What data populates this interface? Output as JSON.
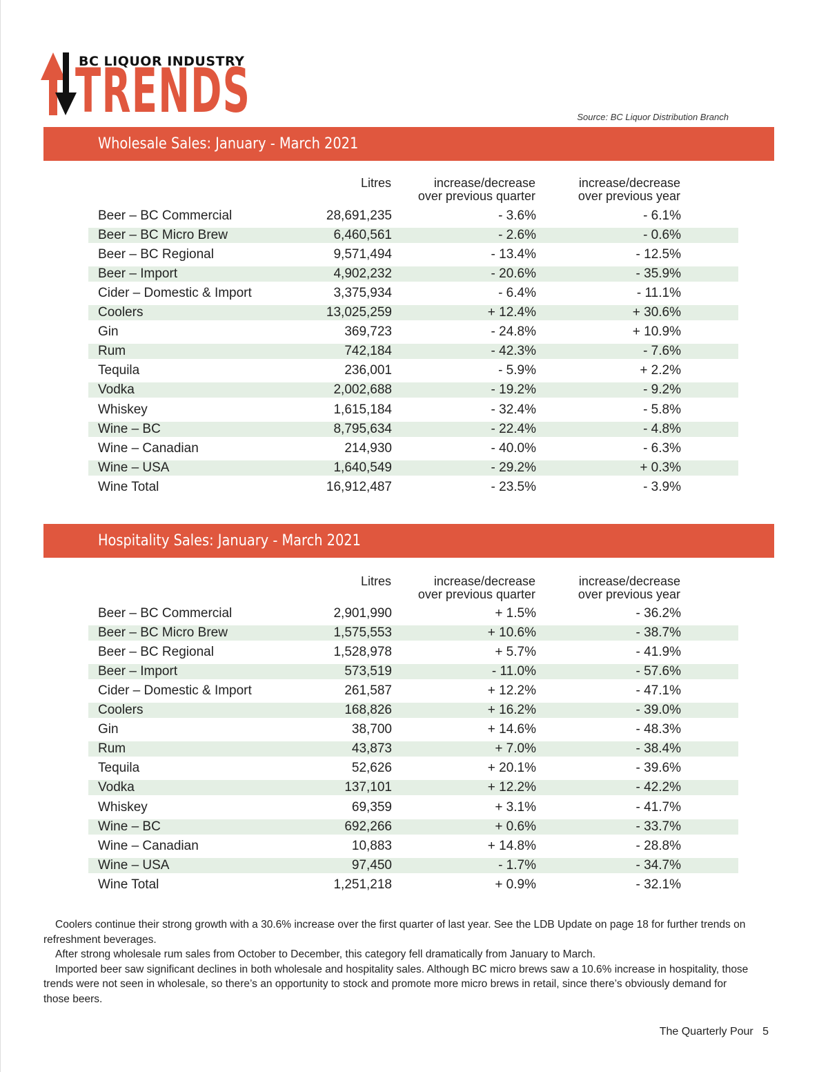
{
  "logo": {
    "small": "BC LIQUOR INDUSTRY",
    "big": "TRENDS",
    "colors": {
      "red": "#e0573e",
      "black": "#111111"
    }
  },
  "source": "Source:  BC Liquor Distribution Branch",
  "headers": {
    "litres": "Litres",
    "quarter1": "increase/decrease",
    "quarter2": "over previous quarter",
    "year1": "increase/decrease",
    "year2": "over previous year"
  },
  "wholesale": {
    "title": "Wholesale Sales:  January - March 2021",
    "rows": [
      [
        "Beer – BC Commercial",
        "28,691,235",
        "- 3.6%",
        "- 6.1%"
      ],
      [
        "Beer – BC Micro Brew",
        "6,460,561",
        "- 2.6%",
        "- 0.6%"
      ],
      [
        "Beer – BC Regional",
        "9,571,494",
        "- 13.4%",
        "- 12.5%"
      ],
      [
        "Beer – Import",
        "4,902,232",
        "- 20.6%",
        "- 35.9%"
      ],
      [
        "Cider – Domestic & Import",
        "3,375,934",
        "- 6.4%",
        "- 11.1%"
      ],
      [
        "Coolers",
        "13,025,259",
        "+ 12.4%",
        "+ 30.6%"
      ],
      [
        "Gin",
        "369,723",
        "- 24.8%",
        "+ 10.9%"
      ],
      [
        "Rum",
        "742,184",
        "- 42.3%",
        "- 7.6%"
      ],
      [
        "Tequila",
        "236,001",
        "- 5.9%",
        "+ 2.2%"
      ],
      [
        "Vodka",
        "2,002,688",
        "- 19.2%",
        "- 9.2%"
      ],
      [
        "Whiskey",
        "1,615,184",
        "- 32.4%",
        "- 5.8%"
      ],
      [
        "Wine – BC",
        "8,795,634",
        "- 22.4%",
        "- 4.8%"
      ],
      [
        "Wine – Canadian",
        "214,930",
        "- 40.0%",
        "- 6.3%"
      ],
      [
        "Wine – USA",
        "1,640,549",
        "- 29.2%",
        "+ 0.3%"
      ],
      [
        "Wine Total",
        "16,912,487",
        "- 23.5%",
        "- 3.9%"
      ]
    ]
  },
  "hospitality": {
    "title": "Hospitality Sales: January - March 2021",
    "rows": [
      [
        "Beer – BC Commercial",
        "2,901,990",
        "+ 1.5%",
        "- 36.2%"
      ],
      [
        "Beer – BC Micro Brew",
        "1,575,553",
        "+ 10.6%",
        "- 38.7%"
      ],
      [
        "Beer – BC Regional",
        "1,528,978",
        "+ 5.7%",
        "- 41.9%"
      ],
      [
        "Beer – Import",
        "573,519",
        "- 11.0%",
        "- 57.6%"
      ],
      [
        "Cider – Domestic & Import",
        "261,587",
        "+ 12.2%",
        "- 47.1%"
      ],
      [
        "Coolers",
        "168,826",
        "+ 16.2%",
        "- 39.0%"
      ],
      [
        "Gin",
        "38,700",
        "+ 14.6%",
        "- 48.3%"
      ],
      [
        "Rum",
        "43,873",
        "+ 7.0%",
        "- 38.4%"
      ],
      [
        "Tequila",
        "52,626",
        "+ 20.1%",
        "- 39.6%"
      ],
      [
        "Vodka",
        "137,101",
        "+ 12.2%",
        "- 42.2%"
      ],
      [
        "Whiskey",
        "69,359",
        "+ 3.1%",
        "- 41.7%"
      ],
      [
        "Wine – BC",
        "692,266",
        "+ 0.6%",
        "- 33.7%"
      ],
      [
        "Wine – Canadian",
        "10,883",
        "+ 14.8%",
        "- 28.8%"
      ],
      [
        "Wine – USA",
        "97,450",
        "- 1.7%",
        "- 34.7%"
      ],
      [
        "Wine Total",
        "1,251,218",
        "+ 0.9%",
        "- 32.1%"
      ]
    ]
  },
  "notes": [
    "Coolers continue their strong growth with a 30.6% increase over the first quarter of last year. See the LDB Update on page 18 for further trends on refreshment beverages.",
    "After strong wholesale rum sales from October to December, this category fell dramatically from January to March.",
    "Imported beer saw significant declines in both wholesale and hospitality sales. Although BC micro brews saw a 10.6% increase in hospitality, those trends were not seen in wholesale, so there’s an opportunity to stock and promote more micro brews in retail, since there’s obviously demand for those beers."
  ],
  "footer": {
    "publication": "The Quarterly Pour",
    "page": "5"
  }
}
